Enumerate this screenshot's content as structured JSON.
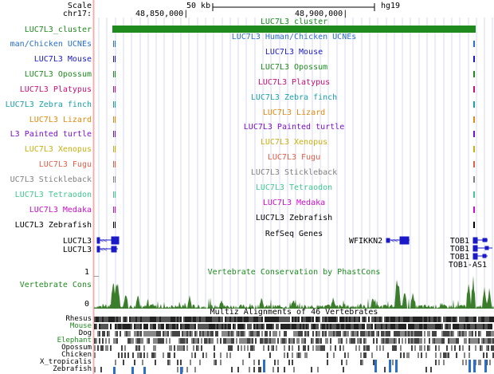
{
  "ruler": {
    "scale_label": "Scale",
    "chrom_label": "chr17:",
    "scale_bar_text": "50 kb",
    "assembly": "hg19",
    "pos1": "48,850,000|",
    "pos2": "48,900,000|"
  },
  "colors": {
    "blue": "#1a1ac8",
    "green": "#1f8b1f",
    "magenta": "#c8107a",
    "teal": "#1aa0a8",
    "orange": "#e08a10",
    "purple": "#7a10c8",
    "yellow": "#c8b010",
    "salmon": "#e0604a",
    "gray": "#808080",
    "mint": "#40c890",
    "fuchsia": "#c810c8",
    "black": "#000000",
    "conservation": "#3a7d2a",
    "light_blue": "#2a6fc8"
  },
  "cluster_track": {
    "label": "LUC7L3_cluster",
    "title": "LUC7L3_cluster",
    "color": "#1f8b1f"
  },
  "species_tracks": [
    {
      "label": "man/Chicken UCNEs",
      "title": "LUC7L3 Human/Chicken UCNEs",
      "color": "#2a6fc8",
      "mark_color": "#2a6fc8"
    },
    {
      "label": "LUC7L3 Mouse",
      "title": "LUC7L3 Mouse",
      "color": "#1a1ac8",
      "mark_color": "#1a1ac8"
    },
    {
      "label": "LUC7L3 Opossum",
      "title": "LUC7L3 Opossum",
      "color": "#1f8b1f",
      "mark_color": "#1f8b1f"
    },
    {
      "label": "LUC7L3 Platypus",
      "title": "LUC7L3 Platypus",
      "color": "#c8107a",
      "mark_color": "#c8107a"
    },
    {
      "label": "LUC7L3 Zebra finch",
      "title": "LUC7L3 Zebra finch",
      "color": "#1aa0a8",
      "mark_color": "#1aa0a8"
    },
    {
      "label": "LUC7L3 Lizard",
      "title": "LUC7L3 Lizard",
      "color": "#e08a10",
      "mark_color": "#e08a10"
    },
    {
      "label": "L3 Painted turtle",
      "title": "LUC7L3 Painted turtle",
      "color": "#7a10c8",
      "mark_color": "#7a10c8"
    },
    {
      "label": "LUC7L3 Xenopus",
      "title": "LUC7L3 Xenopus",
      "color": "#c8b010",
      "mark_color": "#c8b010"
    },
    {
      "label": "LUC7L3 Fugu",
      "title": "LUC7L3 Fugu",
      "color": "#e0604a",
      "mark_color": "#e0604a"
    },
    {
      "label": "UC7L3 Stickleback",
      "title": "LUC7L3 Stickleback",
      "color": "#808080",
      "mark_color": "#808080"
    },
    {
      "label": "LUC7L3 Tetraodon",
      "title": "LUC7L3 Tetraodon",
      "color": "#40c890",
      "mark_color": "#40c890"
    },
    {
      "label": "LUC7L3 Medaka",
      "title": "LUC7L3 Medaka",
      "color": "#c810c8",
      "mark_color": "#c810c8"
    },
    {
      "label": "LUC7L3 Zebrafish",
      "title": "LUC7L3 Zebrafish",
      "color": "#000000",
      "mark_color": "#000000"
    }
  ],
  "refseq": {
    "title": "RefSeq Genes",
    "left_genes": [
      "LUC7L3",
      "LUC7L3"
    ],
    "wfikkn2": "WFIKKN2",
    "right_genes": [
      "TOB1",
      "TOB1",
      "TOB1",
      "TOB1-AS1"
    ]
  },
  "conservation": {
    "title": "Vertebrate Conservation by PhastCons",
    "label": "Vertebrate Cons",
    "ymax": "1 _",
    "ymin": "0 _"
  },
  "multiz": {
    "title": "Multiz Alignments of 46 Vertebrates",
    "species": [
      "Rhesus",
      "Mouse",
      "Dog",
      "Elephant",
      "Opossum",
      "Chicken",
      "X_tropicalis",
      "Zebrafish"
    ],
    "species_colors": [
      "#000000",
      "#1f8b1f",
      "#000000",
      "#1f8b1f",
      "#000000",
      "#000000",
      "#000000",
      "#000000"
    ]
  }
}
